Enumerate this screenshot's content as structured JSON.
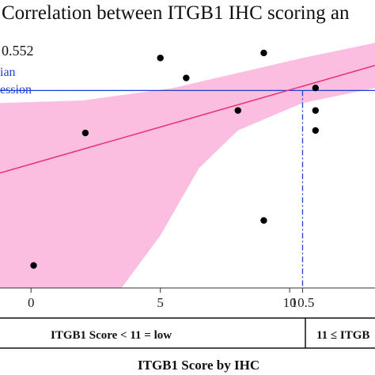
{
  "chart_data": {
    "type": "scatter",
    "title": "Correlation between ITGB1 IHC scoring an",
    "r_text": "0.552",
    "legend_lines": [
      "ian",
      "ession"
    ],
    "xlabel": "ITGB1 Score by IHC",
    "x_ticks": [
      "0",
      "5",
      "10",
      "10.5"
    ],
    "xlim": [
      -1.2,
      13.3
    ],
    "ylim": [
      0,
      1
    ],
    "points": [
      {
        "x": 0.1,
        "y": 0.09
      },
      {
        "x": 2.1,
        "y": 0.62
      },
      {
        "x": 5.0,
        "y": 0.92
      },
      {
        "x": 6.0,
        "y": 0.84
      },
      {
        "x": 8.0,
        "y": 0.71
      },
      {
        "x": 9.0,
        "y": 0.94
      },
      {
        "x": 9.0,
        "y": 0.27
      },
      {
        "x": 11.0,
        "y": 0.8
      },
      {
        "x": 11.0,
        "y": 0.71
      },
      {
        "x": 11.0,
        "y": 0.63
      }
    ],
    "regression": {
      "x0": -1.2,
      "y0": 0.46,
      "x1": 13.3,
      "y1": 0.89
    },
    "ci_upper": [
      [
        -1.2,
        0.74
      ],
      [
        2.0,
        0.75
      ],
      [
        5.5,
        0.8
      ],
      [
        8.0,
        0.86
      ],
      [
        10.5,
        0.92
      ],
      [
        13.3,
        0.98
      ]
    ],
    "ci_lower": [
      [
        13.3,
        0.8
      ],
      [
        10.5,
        0.74
      ],
      [
        8.0,
        0.63
      ],
      [
        6.5,
        0.48
      ],
      [
        5.0,
        0.21
      ],
      [
        3.5,
        -0.05
      ],
      [
        -1.2,
        -0.05
      ]
    ],
    "median_line_y": 0.79,
    "cutoff_x": 10.5,
    "colors": {
      "regression": "#e8316e",
      "ci_band": "#fbbde0",
      "median_line": "#1f3fd4",
      "cutoff": "#1f3fd4",
      "points": "#000000"
    },
    "bands": [
      {
        "label": "ITGB1 Score < 11 = low"
      },
      {
        "label": "11 ≤ ITGB"
      }
    ]
  }
}
